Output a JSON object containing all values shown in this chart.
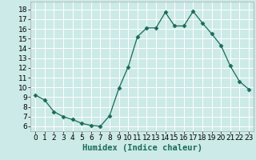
{
  "x": [
    0,
    1,
    2,
    3,
    4,
    5,
    6,
    7,
    8,
    9,
    10,
    11,
    12,
    13,
    14,
    15,
    16,
    17,
    18,
    19,
    20,
    21,
    22,
    23
  ],
  "y": [
    9.2,
    8.7,
    7.5,
    7.0,
    6.7,
    6.3,
    6.1,
    6.0,
    7.1,
    9.9,
    12.1,
    15.2,
    16.1,
    16.1,
    17.7,
    16.3,
    16.3,
    17.8,
    16.6,
    15.5,
    14.3,
    12.2,
    10.6,
    9.8
  ],
  "line_color": "#1a6b5a",
  "marker": "D",
  "marker_size": 2.5,
  "bg_color": "#cceae7",
  "grid_color": "#ffffff",
  "xlabel": "Humidex (Indice chaleur)",
  "xlabel_fontsize": 7.5,
  "ylim": [
    5.5,
    18.8
  ],
  "xlim": [
    -0.5,
    23.5
  ],
  "yticks": [
    6,
    7,
    8,
    9,
    10,
    11,
    12,
    13,
    14,
    15,
    16,
    17,
    18
  ],
  "xticks": [
    0,
    1,
    2,
    3,
    4,
    5,
    6,
    7,
    8,
    9,
    10,
    11,
    12,
    13,
    14,
    15,
    16,
    17,
    18,
    19,
    20,
    21,
    22,
    23
  ],
  "tick_fontsize": 6.5
}
